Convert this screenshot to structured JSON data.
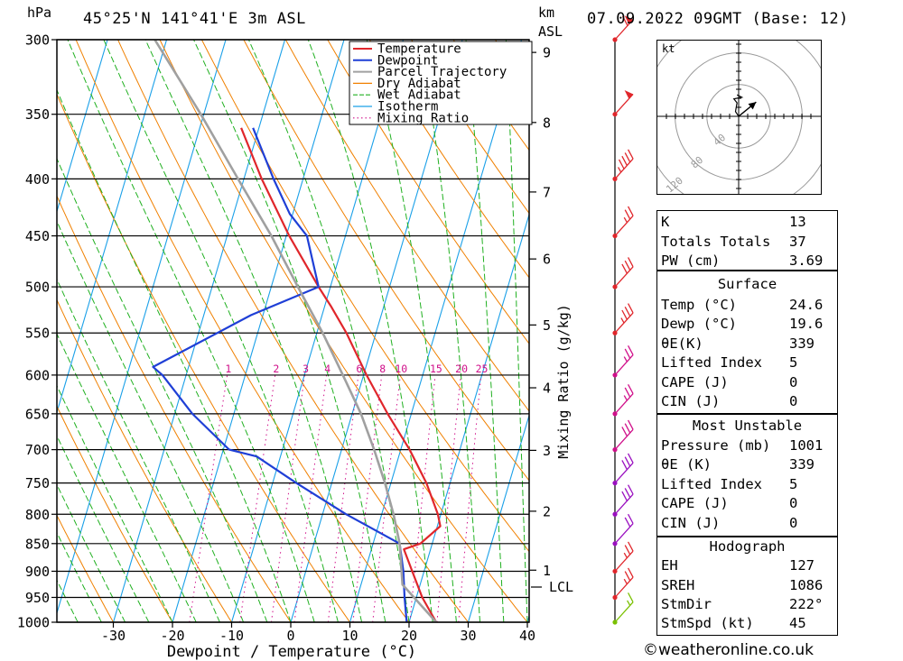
{
  "header": {
    "location": "45°25'N  141°41'E  3m  ASL",
    "datetime": "07.09.2022  09GMT  (Base: 12)"
  },
  "left_unit": "hPa",
  "right_unit": [
    "km",
    "ASL"
  ],
  "mixing_ratio_axis_label": "Mixing Ratio (g/kg)",
  "lcl_label": "LCL",
  "hodograph": {
    "unit_label": "kt",
    "ring_labels": [
      "40",
      "80",
      "120"
    ],
    "trace_kt": [
      [
        0,
        0
      ],
      [
        -4,
        6
      ],
      [
        -2,
        17
      ],
      [
        -6,
        22
      ],
      [
        4,
        24
      ],
      [
        -2,
        27
      ]
    ],
    "storm_motion_vector_kt": [
      [
        0,
        0
      ],
      [
        22,
        18
      ]
    ]
  },
  "indices": [
    {
      "label": "K",
      "value": "13"
    },
    {
      "label": "Totals Totals",
      "value": "37"
    },
    {
      "label": "PW (cm)",
      "value": "3.69"
    }
  ],
  "surface": {
    "title": "Surface",
    "rows": [
      {
        "label": "Temp (°C)",
        "value": "24.6"
      },
      {
        "label": "Dewp (°C)",
        "value": "19.6"
      },
      {
        "label": "θE(K)",
        "value": "339"
      },
      {
        "label": "Lifted Index",
        "value": "5"
      },
      {
        "label": "CAPE (J)",
        "value": "0"
      },
      {
        "label": "CIN (J)",
        "value": "0"
      }
    ]
  },
  "most_unstable": {
    "title": "Most Unstable",
    "rows": [
      {
        "label": "Pressure (mb)",
        "value": "1001"
      },
      {
        "label": "θE (K)",
        "value": "339"
      },
      {
        "label": "Lifted Index",
        "value": "5"
      },
      {
        "label": "CAPE (J)",
        "value": "0"
      },
      {
        "label": "CIN (J)",
        "value": "0"
      }
    ]
  },
  "hodograph_indices": {
    "title": "Hodograph",
    "rows": [
      {
        "label": "EH",
        "value": "127"
      },
      {
        "label": "SREH",
        "value": "1086"
      },
      {
        "label": "StmDir",
        "value": "222°"
      },
      {
        "label": "StmSpd (kt)",
        "value": "45"
      }
    ]
  },
  "credit": "©weatheronline.co.uk",
  "colors": {
    "temperature": "#e0262b",
    "dewpoint": "#1f3fd6",
    "parcel": "#a0a0a0",
    "dry_adiabat": "#f08000",
    "wet_adiabat": "#20b020",
    "isotherm": "#1aa0e8",
    "mixing_ratio": "#d0108a"
  },
  "chart_data": {
    "type": "line",
    "title": "",
    "xlabel": "Dewpoint / Temperature (°C)",
    "ylabel": "hPa",
    "xlim": [
      -40,
      40
    ],
    "pressure_levels": [
      300,
      350,
      400,
      450,
      500,
      550,
      600,
      650,
      700,
      750,
      800,
      850,
      900,
      950,
      1000
    ],
    "x_ticks": [
      -30,
      -20,
      -10,
      0,
      10,
      20,
      30,
      40
    ],
    "height_km_ticks": [
      {
        "km": 1,
        "p": 898
      },
      {
        "km": 2,
        "p": 795
      },
      {
        "km": 3,
        "p": 701
      },
      {
        "km": 4,
        "p": 616
      },
      {
        "km": 5,
        "p": 541
      },
      {
        "km": 6,
        "p": 472
      },
      {
        "km": 7,
        "p": 411
      },
      {
        "km": 8,
        "p": 356
      },
      {
        "km": 9,
        "p": 308
      }
    ],
    "lcl_pressure": 925,
    "mixing_ratio_labels": [
      "1",
      "2",
      "3",
      "4",
      "6",
      "8",
      "10",
      "15",
      "20",
      "25"
    ],
    "mixing_ratio_values": [
      1,
      2,
      3,
      4,
      6,
      8,
      10,
      15,
      20,
      25
    ],
    "legend": [
      "Temperature",
      "Dewpoint",
      "Parcel Trajectory",
      "Dry Adiabat",
      "Wet Adiabat",
      "Isotherm",
      "Mixing Ratio"
    ],
    "legend_position": "top-center",
    "series": [
      {
        "name": "Temperature",
        "points": [
          [
            1000,
            24.6
          ],
          [
            950,
            21.0
          ],
          [
            900,
            18.0
          ],
          [
            860,
            15.5
          ],
          [
            850,
            18.0
          ],
          [
            820,
            20.5
          ],
          [
            800,
            19.5
          ],
          [
            750,
            16.0
          ],
          [
            700,
            11.5
          ],
          [
            650,
            6.0
          ],
          [
            600,
            0.5
          ],
          [
            550,
            -5.0
          ],
          [
            520,
            -9.0
          ],
          [
            500,
            -12.0
          ],
          [
            450,
            -19.5
          ],
          [
            400,
            -27.0
          ],
          [
            360,
            -33.0
          ]
        ]
      },
      {
        "name": "Dewpoint",
        "points": [
          [
            1000,
            19.6
          ],
          [
            950,
            18.0
          ],
          [
            900,
            16.5
          ],
          [
            850,
            14.5
          ],
          [
            800,
            4.0
          ],
          [
            750,
            -6.0
          ],
          [
            710,
            -14.0
          ],
          [
            700,
            -19.0
          ],
          [
            650,
            -27.0
          ],
          [
            600,
            -34.0
          ],
          [
            590,
            -36.0
          ],
          [
            530,
            -22.0
          ],
          [
            500,
            -12.0
          ],
          [
            450,
            -16.5
          ],
          [
            430,
            -20.5
          ],
          [
            400,
            -25.0
          ],
          [
            360,
            -31.0
          ]
        ]
      },
      {
        "name": "Parcel Trajectory",
        "points": [
          [
            1000,
            24.6
          ],
          [
            925,
            17.0
          ],
          [
            850,
            14.5
          ],
          [
            800,
            12.0
          ],
          [
            750,
            9.0
          ],
          [
            700,
            5.5
          ],
          [
            650,
            1.5
          ],
          [
            600,
            -3.5
          ],
          [
            550,
            -9.0
          ],
          [
            500,
            -15.5
          ],
          [
            450,
            -22.5
          ],
          [
            400,
            -31.0
          ],
          [
            350,
            -40.5
          ],
          [
            300,
            -52.0
          ]
        ]
      }
    ],
    "wind_barbs": [
      {
        "p": 1000,
        "speed_kt": 15
      },
      {
        "p": 950,
        "speed_kt": 25
      },
      {
        "p": 900,
        "speed_kt": 25
      },
      {
        "p": 850,
        "speed_kt": 20
      },
      {
        "p": 800,
        "speed_kt": 30
      },
      {
        "p": 750,
        "speed_kt": 30
      },
      {
        "p": 700,
        "speed_kt": 30
      },
      {
        "p": 650,
        "speed_kt": 25
      },
      {
        "p": 600,
        "speed_kt": 25
      },
      {
        "p": 550,
        "speed_kt": 35
      },
      {
        "p": 500,
        "speed_kt": 30
      },
      {
        "p": 450,
        "speed_kt": 25
      },
      {
        "p": 400,
        "speed_kt": 45
      },
      {
        "p": 350,
        "speed_kt": 50
      },
      {
        "p": 300,
        "speed_kt": 60
      }
    ]
  }
}
